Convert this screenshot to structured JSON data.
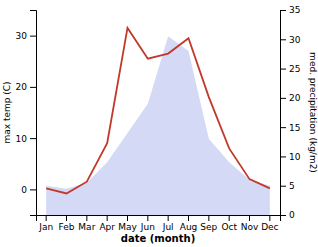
{
  "chart_data": {
    "type": "line",
    "xlabel": "date (month)",
    "ylabel": "max temp (C)",
    "y2label": "med. precipitation (kg/m2)",
    "categories": [
      "Jan",
      "Feb",
      "Mar",
      "Apr",
      "May",
      "Jun",
      "Jul",
      "Aug",
      "Sep",
      "Oct",
      "Nov",
      "Dec"
    ],
    "series": [
      {
        "type": "area",
        "axis": "y2",
        "color": "#b0bcee",
        "values": [
          5.0,
          4.5,
          5.5,
          9.0,
          14.0,
          19.0,
          30.5,
          28.0,
          13.0,
          9.0,
          6.0,
          5.0
        ]
      },
      {
        "type": "line",
        "color": "#c0392b",
        "values": [
          0.2,
          -0.8,
          1.5,
          9.0,
          31.5,
          25.5,
          26.5,
          29.5,
          18.0,
          8.0,
          2.0,
          0.2
        ]
      }
    ],
    "ylim": [
      -5,
      35
    ],
    "yticks": [
      0,
      10,
      20,
      30
    ],
    "y2lim": [
      0,
      35
    ],
    "y2ticks": [
      0,
      5,
      10,
      15,
      20,
      25,
      30,
      35
    ],
    "grid": false
  }
}
